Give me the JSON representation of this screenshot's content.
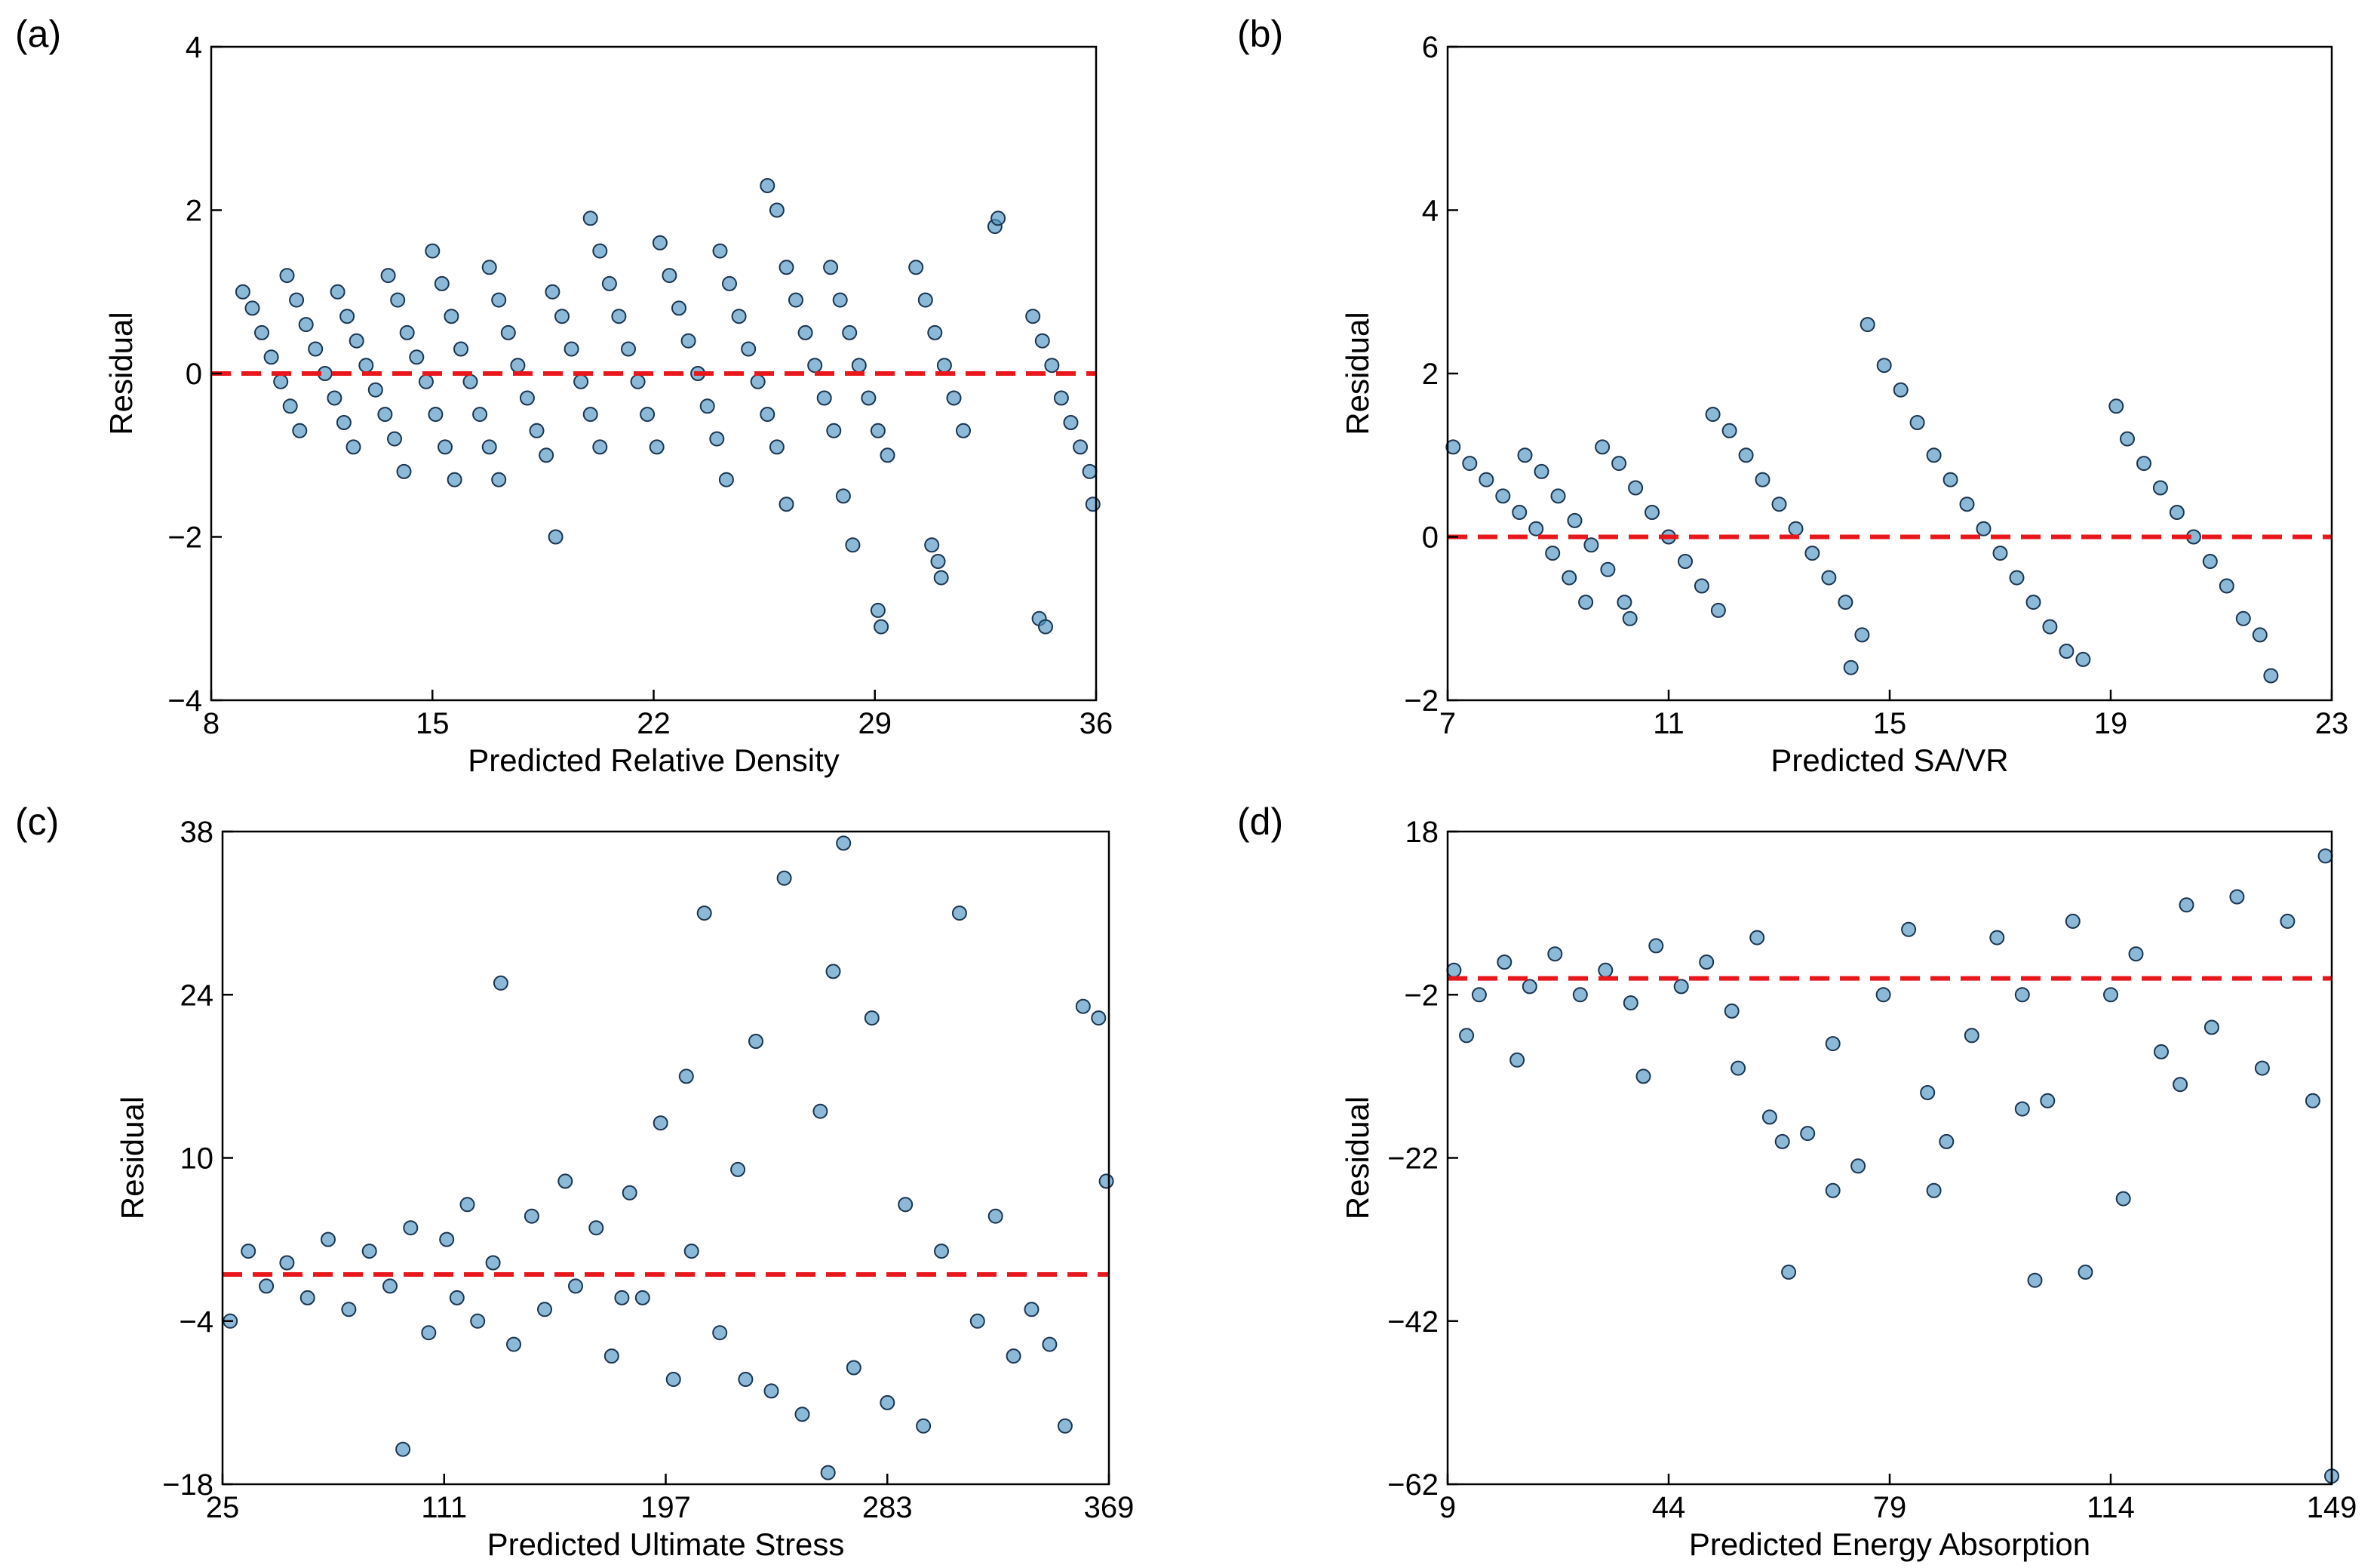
{
  "figure": {
    "panels": [
      "(a)",
      "(b)",
      "(c)",
      "(d)"
    ]
  },
  "chart_data": [
    {
      "type": "scatter",
      "panel_label": "(a)",
      "title": "",
      "xlabel": "Predicted Relative Density",
      "ylabel": "Residual",
      "xlim": [
        8,
        36
      ],
      "ylim": [
        -4,
        4
      ],
      "xticks": [
        8,
        15,
        22,
        29,
        36
      ],
      "yticks": [
        -4,
        -2,
        0,
        2,
        4
      ],
      "reference_line": {
        "y": 0,
        "style": "dashed",
        "color": "#e8171c"
      },
      "marker_color": "#4e93c3",
      "marker_edge": "#1a3550",
      "points": [
        [
          9.0,
          1.0
        ],
        [
          9.3,
          0.8
        ],
        [
          9.6,
          0.5
        ],
        [
          9.9,
          0.2
        ],
        [
          10.2,
          -0.1
        ],
        [
          10.5,
          -0.4
        ],
        [
          10.8,
          -0.7
        ],
        [
          10.4,
          1.2
        ],
        [
          10.7,
          0.9
        ],
        [
          11.0,
          0.6
        ],
        [
          11.3,
          0.3
        ],
        [
          11.6,
          0.0
        ],
        [
          11.9,
          -0.3
        ],
        [
          12.2,
          -0.6
        ],
        [
          12.5,
          -0.9
        ],
        [
          12.0,
          1.0
        ],
        [
          12.3,
          0.7
        ],
        [
          12.6,
          0.4
        ],
        [
          12.9,
          0.1
        ],
        [
          13.2,
          -0.2
        ],
        [
          13.5,
          -0.5
        ],
        [
          13.8,
          -0.8
        ],
        [
          14.1,
          -1.2
        ],
        [
          13.6,
          1.2
        ],
        [
          13.9,
          0.9
        ],
        [
          14.2,
          0.5
        ],
        [
          14.5,
          0.2
        ],
        [
          14.8,
          -0.1
        ],
        [
          15.1,
          -0.5
        ],
        [
          15.4,
          -0.9
        ],
        [
          15.7,
          -1.3
        ],
        [
          15.0,
          1.5
        ],
        [
          15.3,
          1.1
        ],
        [
          15.6,
          0.7
        ],
        [
          15.9,
          0.3
        ],
        [
          16.2,
          -0.1
        ],
        [
          16.5,
          -0.5
        ],
        [
          16.8,
          -0.9
        ],
        [
          17.1,
          -1.3
        ],
        [
          16.8,
          1.3
        ],
        [
          17.1,
          0.9
        ],
        [
          17.4,
          0.5
        ],
        [
          17.7,
          0.1
        ],
        [
          18.0,
          -0.3
        ],
        [
          18.3,
          -0.7
        ],
        [
          18.6,
          -1.0
        ],
        [
          18.9,
          -2.0
        ],
        [
          18.8,
          1.0
        ],
        [
          19.1,
          0.7
        ],
        [
          19.4,
          0.3
        ],
        [
          19.7,
          -0.1
        ],
        [
          20.0,
          -0.5
        ],
        [
          20.3,
          -0.9
        ],
        [
          20.0,
          1.9
        ],
        [
          20.3,
          1.5
        ],
        [
          20.6,
          1.1
        ],
        [
          20.9,
          0.7
        ],
        [
          21.2,
          0.3
        ],
        [
          21.5,
          -0.1
        ],
        [
          21.8,
          -0.5
        ],
        [
          22.1,
          -0.9
        ],
        [
          22.2,
          1.6
        ],
        [
          22.5,
          1.2
        ],
        [
          22.8,
          0.8
        ],
        [
          23.1,
          0.4
        ],
        [
          23.4,
          0.0
        ],
        [
          23.7,
          -0.4
        ],
        [
          24.0,
          -0.8
        ],
        [
          24.3,
          -1.3
        ],
        [
          24.1,
          1.5
        ],
        [
          24.4,
          1.1
        ],
        [
          24.7,
          0.7
        ],
        [
          25.0,
          0.3
        ],
        [
          25.3,
          -0.1
        ],
        [
          25.6,
          -0.5
        ],
        [
          25.9,
          -0.9
        ],
        [
          26.2,
          -1.6
        ],
        [
          25.6,
          2.3
        ],
        [
          25.9,
          2.0
        ],
        [
          26.2,
          1.3
        ],
        [
          26.5,
          0.9
        ],
        [
          26.8,
          0.5
        ],
        [
          27.1,
          0.1
        ],
        [
          27.4,
          -0.3
        ],
        [
          27.7,
          -0.7
        ],
        [
          28.0,
          -1.5
        ],
        [
          28.3,
          -2.1
        ],
        [
          27.6,
          1.3
        ],
        [
          27.9,
          0.9
        ],
        [
          28.2,
          0.5
        ],
        [
          28.5,
          0.1
        ],
        [
          28.8,
          -0.3
        ],
        [
          29.1,
          -0.7
        ],
        [
          29.4,
          -1.0
        ],
        [
          29.2,
          -3.1
        ],
        [
          29.1,
          -2.9
        ],
        [
          30.3,
          1.3
        ],
        [
          30.6,
          0.9
        ],
        [
          30.9,
          0.5
        ],
        [
          31.2,
          0.1
        ],
        [
          31.5,
          -0.3
        ],
        [
          31.8,
          -0.7
        ],
        [
          31.0,
          -2.3
        ],
        [
          30.8,
          -2.1
        ],
        [
          31.1,
          -2.5
        ],
        [
          32.8,
          1.8
        ],
        [
          32.9,
          1.9
        ],
        [
          34.0,
          0.7
        ],
        [
          34.3,
          0.4
        ],
        [
          34.6,
          0.1
        ],
        [
          34.9,
          -0.3
        ],
        [
          35.2,
          -0.6
        ],
        [
          35.5,
          -0.9
        ],
        [
          35.8,
          -1.2
        ],
        [
          35.9,
          -1.6
        ],
        [
          34.2,
          -3.0
        ],
        [
          34.4,
          -3.1
        ]
      ]
    },
    {
      "type": "scatter",
      "panel_label": "(b)",
      "title": "",
      "xlabel": "Predicted SA/VR",
      "ylabel": "Residual",
      "xlim": [
        7,
        23
      ],
      "ylim": [
        -2,
        6
      ],
      "xticks": [
        7,
        11,
        15,
        19,
        23
      ],
      "yticks": [
        -2,
        0,
        2,
        4,
        6
      ],
      "reference_line": {
        "y": 0,
        "style": "dashed",
        "color": "#e8171c"
      },
      "marker_color": "#4e93c3",
      "marker_edge": "#1a3550",
      "points": [
        [
          7.1,
          1.1
        ],
        [
          7.4,
          0.9
        ],
        [
          7.7,
          0.7
        ],
        [
          8.0,
          0.5
        ],
        [
          8.3,
          0.3
        ],
        [
          8.6,
          0.1
        ],
        [
          8.9,
          -0.2
        ],
        [
          9.2,
          -0.5
        ],
        [
          9.5,
          -0.8
        ],
        [
          8.4,
          1.0
        ],
        [
          8.7,
          0.8
        ],
        [
          9.0,
          0.5
        ],
        [
          9.3,
          0.2
        ],
        [
          9.6,
          -0.1
        ],
        [
          9.9,
          -0.4
        ],
        [
          10.2,
          -0.8
        ],
        [
          9.8,
          1.1
        ],
        [
          10.1,
          0.9
        ],
        [
          10.4,
          0.6
        ],
        [
          10.7,
          0.3
        ],
        [
          11.0,
          0.0
        ],
        [
          11.3,
          -0.3
        ],
        [
          11.6,
          -0.6
        ],
        [
          11.9,
          -0.9
        ],
        [
          10.3,
          -1.0
        ],
        [
          11.8,
          1.5
        ],
        [
          12.1,
          1.3
        ],
        [
          12.4,
          1.0
        ],
        [
          12.7,
          0.7
        ],
        [
          13.0,
          0.4
        ],
        [
          13.3,
          0.1
        ],
        [
          13.6,
          -0.2
        ],
        [
          13.9,
          -0.5
        ],
        [
          14.2,
          -0.8
        ],
        [
          14.5,
          -1.2
        ],
        [
          14.3,
          -1.6
        ],
        [
          14.6,
          2.6
        ],
        [
          14.9,
          2.1
        ],
        [
          15.2,
          1.8
        ],
        [
          15.5,
          1.4
        ],
        [
          15.8,
          1.0
        ],
        [
          16.1,
          0.7
        ],
        [
          16.4,
          0.4
        ],
        [
          16.7,
          0.1
        ],
        [
          17.0,
          -0.2
        ],
        [
          17.3,
          -0.5
        ],
        [
          17.6,
          -0.8
        ],
        [
          17.9,
          -1.1
        ],
        [
          18.2,
          -1.4
        ],
        [
          18.5,
          -1.5
        ],
        [
          19.1,
          1.6
        ],
        [
          19.3,
          1.2
        ],
        [
          19.6,
          0.9
        ],
        [
          19.9,
          0.6
        ],
        [
          20.2,
          0.3
        ],
        [
          20.5,
          0.0
        ],
        [
          20.8,
          -0.3
        ],
        [
          21.1,
          -0.6
        ],
        [
          21.4,
          -1.0
        ],
        [
          21.7,
          -1.2
        ],
        [
          21.9,
          -1.7
        ]
      ]
    },
    {
      "type": "scatter",
      "panel_label": "(c)",
      "title": "",
      "xlabel": "Predicted Ultimate Stress",
      "ylabel": "Residual",
      "xlim": [
        25,
        369
      ],
      "ylim": [
        -18,
        38
      ],
      "xticks": [
        25,
        111,
        197,
        283,
        369
      ],
      "yticks": [
        -18,
        -4,
        10,
        24,
        38
      ],
      "reference_line": {
        "y": 0,
        "style": "dashed",
        "color": "#e8171c"
      },
      "marker_color": "#4e93c3",
      "marker_edge": "#1a3550",
      "points": [
        [
          28,
          -4
        ],
        [
          35,
          2
        ],
        [
          42,
          -1
        ],
        [
          50,
          1
        ],
        [
          58,
          -2
        ],
        [
          66,
          3
        ],
        [
          74,
          -3
        ],
        [
          82,
          2
        ],
        [
          90,
          -1
        ],
        [
          98,
          4
        ],
        [
          105,
          -5
        ],
        [
          112,
          3
        ],
        [
          116,
          -2
        ],
        [
          120,
          6
        ],
        [
          124,
          -4
        ],
        [
          130,
          1
        ],
        [
          138,
          -6
        ],
        [
          145,
          5
        ],
        [
          150,
          -3
        ],
        [
          158,
          8
        ],
        [
          162,
          -1
        ],
        [
          170,
          4
        ],
        [
          176,
          -7
        ],
        [
          183,
          7
        ],
        [
          188,
          -2
        ],
        [
          195,
          13
        ],
        [
          200,
          -9
        ],
        [
          207,
          2
        ],
        [
          212,
          31
        ],
        [
          218,
          -5
        ],
        [
          225,
          9
        ],
        [
          232,
          20
        ],
        [
          238,
          -10
        ],
        [
          243,
          34
        ],
        [
          250,
          -12
        ],
        [
          257,
          14
        ],
        [
          262,
          26
        ],
        [
          266,
          37
        ],
        [
          270,
          -8
        ],
        [
          277,
          22
        ],
        [
          283,
          -11
        ],
        [
          290,
          6
        ],
        [
          297,
          -13
        ],
        [
          304,
          2
        ],
        [
          311,
          31
        ],
        [
          318,
          -4
        ],
        [
          325,
          5
        ],
        [
          332,
          -7
        ],
        [
          339,
          -3
        ],
        [
          346,
          -6
        ],
        [
          352,
          -13
        ],
        [
          359,
          23
        ],
        [
          365,
          22
        ],
        [
          368,
          8
        ],
        [
          95,
          -15
        ],
        [
          133,
          25
        ],
        [
          180,
          -2
        ],
        [
          205,
          17
        ],
        [
          228,
          -9
        ],
        [
          260,
          -17
        ]
      ]
    },
    {
      "type": "scatter",
      "panel_label": "(d)",
      "title": "",
      "xlabel": "Predicted Energy Absorption",
      "ylabel": "Residual",
      "xlim": [
        9,
        149
      ],
      "ylim": [
        -62,
        18
      ],
      "xticks": [
        9,
        44,
        79,
        114,
        149
      ],
      "yticks": [
        -62,
        -42,
        -22,
        -2,
        18
      ],
      "reference_line": {
        "y": 0,
        "style": "dashed",
        "color": "#e8171c"
      },
      "marker_color": "#4e93c3",
      "marker_edge": "#1a3550",
      "points": [
        [
          10,
          1
        ],
        [
          14,
          -2
        ],
        [
          18,
          2
        ],
        [
          22,
          -1
        ],
        [
          26,
          3
        ],
        [
          30,
          -2
        ],
        [
          34,
          1
        ],
        [
          38,
          -3
        ],
        [
          42,
          4
        ],
        [
          46,
          -1
        ],
        [
          50,
          2
        ],
        [
          54,
          -4
        ],
        [
          58,
          5
        ],
        [
          60,
          -17
        ],
        [
          62,
          -20
        ],
        [
          63,
          -36
        ],
        [
          66,
          -19
        ],
        [
          70,
          -26
        ],
        [
          74,
          -23
        ],
        [
          78,
          -2
        ],
        [
          82,
          6
        ],
        [
          86,
          -26
        ],
        [
          88,
          -20
        ],
        [
          92,
          -7
        ],
        [
          96,
          5
        ],
        [
          100,
          -2
        ],
        [
          102,
          -37
        ],
        [
          104,
          -15
        ],
        [
          108,
          7
        ],
        [
          110,
          -36
        ],
        [
          114,
          -2
        ],
        [
          116,
          -27
        ],
        [
          118,
          3
        ],
        [
          122,
          -9
        ],
        [
          126,
          9
        ],
        [
          130,
          -6
        ],
        [
          134,
          10
        ],
        [
          138,
          -11
        ],
        [
          142,
          7
        ],
        [
          146,
          -15
        ],
        [
          148,
          15
        ],
        [
          149,
          -61
        ],
        [
          12,
          -7
        ],
        [
          20,
          -10
        ],
        [
          40,
          -12
        ],
        [
          55,
          -11
        ],
        [
          70,
          -8
        ],
        [
          85,
          -14
        ],
        [
          100,
          -16
        ],
        [
          125,
          -13
        ]
      ]
    }
  ]
}
